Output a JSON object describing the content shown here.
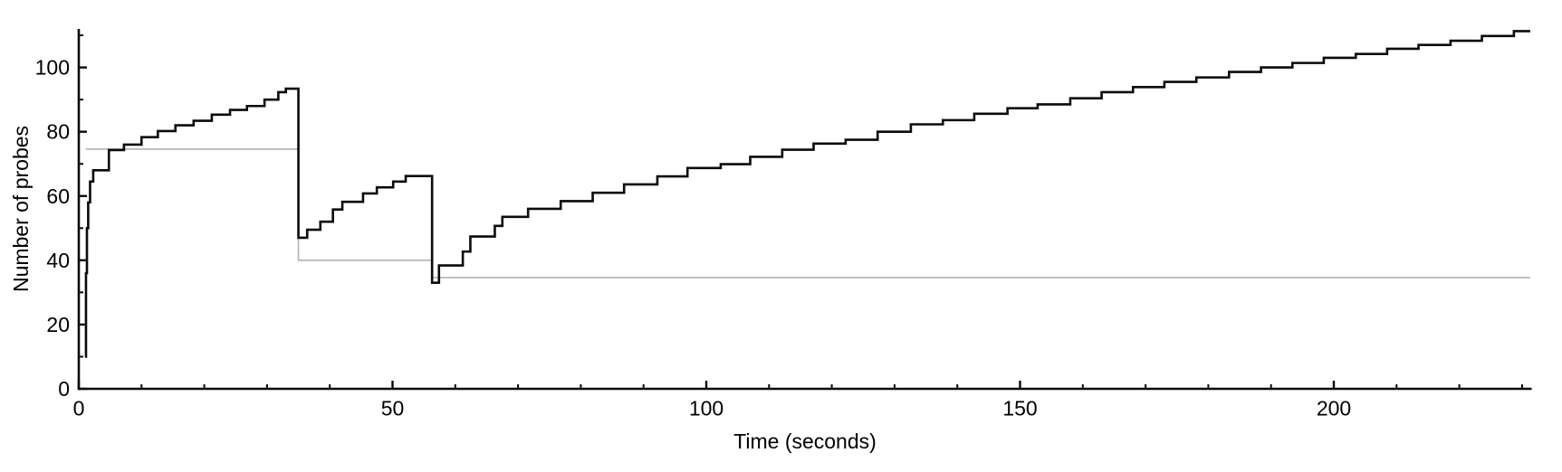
{
  "page": {
    "background": "#ffffff"
  },
  "chart_data": {
    "type": "line",
    "line_style": "step-after",
    "title": "",
    "xlabel": "Time (seconds)",
    "ylabel": "Number of probes",
    "xlim": [
      0,
      232.5
    ],
    "ylim": [
      0,
      112
    ],
    "grid": false,
    "legend": "none",
    "x_axis": {
      "major_ticks": [
        0,
        50,
        100,
        150,
        200
      ],
      "major_tick_labels": [
        "0",
        "50",
        "100",
        "150",
        "200"
      ],
      "minor_tick_interval": 10,
      "minor_tick_max": 230
    },
    "y_axis": {
      "major_ticks": [
        0,
        20,
        40,
        60,
        80,
        100
      ],
      "major_tick_labels": [
        "0",
        "20",
        "40",
        "60",
        "80",
        "100"
      ],
      "minor_tick_interval": 10,
      "minor_tick_max": 110
    },
    "series": [
      {
        "name": "number-of-probes",
        "color": "#0a0a0a",
        "stroke_width": 2.6,
        "points": [
          [
            1.0,
            10
          ],
          [
            1.15,
            36
          ],
          [
            1.3,
            50
          ],
          [
            1.5,
            58
          ],
          [
            1.8,
            64.5
          ],
          [
            2.3,
            68
          ],
          [
            4.8,
            74.3
          ],
          [
            7.2,
            76
          ],
          [
            10,
            78.3
          ],
          [
            12.6,
            80.2
          ],
          [
            15.4,
            82
          ],
          [
            18.3,
            83.4
          ],
          [
            21.2,
            85.3
          ],
          [
            24.1,
            86.8
          ],
          [
            26.8,
            88
          ],
          [
            29.6,
            90
          ],
          [
            31.8,
            92.3
          ],
          [
            33,
            93.4
          ],
          [
            35,
            47
          ],
          [
            36.4,
            49.5
          ],
          [
            38.5,
            52
          ],
          [
            40.5,
            55.8
          ],
          [
            42,
            58.2
          ],
          [
            45.3,
            60.8
          ],
          [
            47.5,
            62.7
          ],
          [
            50.1,
            64.5
          ],
          [
            52.1,
            66.2
          ],
          [
            56.3,
            33
          ],
          [
            57.4,
            38.4
          ],
          [
            61.2,
            42.7
          ],
          [
            62.4,
            47.4
          ],
          [
            66.3,
            50.7
          ],
          [
            67.5,
            53.5
          ],
          [
            71.6,
            56
          ],
          [
            76.8,
            58.4
          ],
          [
            81.9,
            61
          ],
          [
            86.9,
            63.6
          ],
          [
            92.2,
            66.1
          ],
          [
            97,
            68.7
          ],
          [
            102.3,
            69.9
          ],
          [
            107,
            72.2
          ],
          [
            112.1,
            74.4
          ],
          [
            117.1,
            76.3
          ],
          [
            122.2,
            77.5
          ],
          [
            127.3,
            80
          ],
          [
            132.6,
            82.3
          ],
          [
            137.7,
            83.6
          ],
          [
            142.7,
            85.6
          ],
          [
            148,
            87.3
          ],
          [
            152.8,
            88.5
          ],
          [
            158,
            90.4
          ],
          [
            163,
            92.3
          ],
          [
            168,
            93.9
          ],
          [
            173,
            95.5
          ],
          [
            178.1,
            96.9
          ],
          [
            183.3,
            98.6
          ],
          [
            188.4,
            100
          ],
          [
            193.4,
            101.4
          ],
          [
            198.4,
            103
          ],
          [
            203.5,
            104.2
          ],
          [
            208.5,
            105.8
          ],
          [
            213.5,
            107
          ],
          [
            218.6,
            108.3
          ],
          [
            223.6,
            109.8
          ],
          [
            228.7,
            111.3
          ],
          [
            231.3,
            111.3
          ]
        ]
      }
    ],
    "reference_line": {
      "name": "baseline-threshold",
      "color": "#b7b7b7",
      "stroke_width": 1.7,
      "points": [
        [
          1.1,
          74.6
        ],
        [
          35,
          74.6
        ],
        [
          35,
          40
        ],
        [
          56.3,
          40
        ],
        [
          56.3,
          34.6
        ],
        [
          231.3,
          34.6
        ]
      ]
    }
  }
}
